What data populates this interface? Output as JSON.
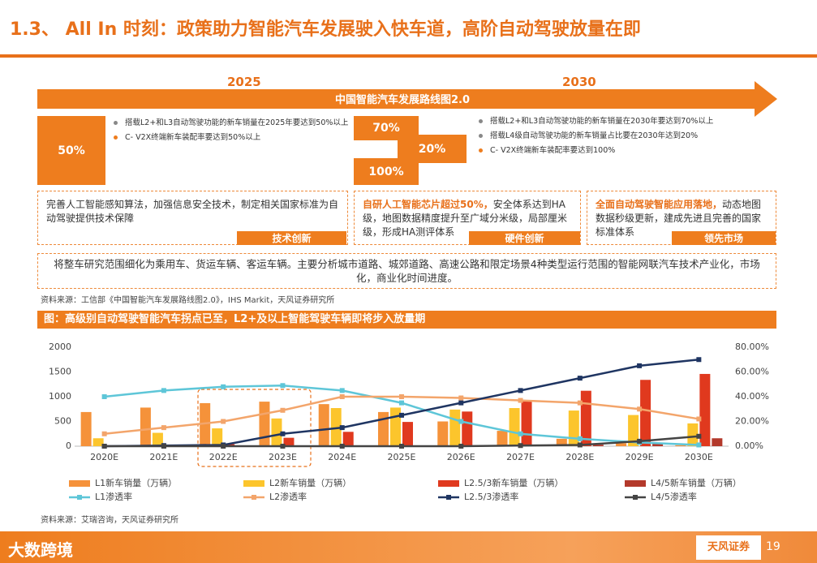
{
  "header": {
    "title": "1.3、 All In 时刻：政策助力智能汽车发展驶入快车道，高阶自动驾驶放量在即"
  },
  "roadmap": {
    "years": [
      "2025",
      "2030"
    ],
    "arrow_label": "中国智能汽车发展路线图2.0",
    "left": {
      "stat": "50%",
      "bullets": [
        "搭载L2+和L3自动驾驶功能的新车销量在2025年要达到50%以上",
        "C- V2X终端新车装配率要达到50%以上"
      ]
    },
    "right": {
      "stats": [
        "70%",
        "20%",
        "100%"
      ],
      "bullets": [
        "搭载L2+和L3自动驾驶功能的新车销量在2030年要达到70%以上",
        "搭载L4级自动驾驶功能的新车销量占比要在2030年达到20%",
        "C- V2X终端新车装配率要达到100%"
      ]
    }
  },
  "cards": [
    {
      "text": "完善人工智能感知算法，加强信息安全技术，制定相关国家标准为自动驾驶提供技术保障",
      "tag": "技术创新"
    },
    {
      "highlight": "自研人工智能芯片超过50%，",
      "text": "安全体系达到HA级，地图数据精度提升至广域分米级，局部厘米级，形成HA测评体系",
      "tag": "硬件创新"
    },
    {
      "highlight": "全面自动驾驶智能应用落地，",
      "text": "动态地图数据秒级更新，建成先进且完善的国家标准体系",
      "tag": "领先市场"
    }
  ],
  "summary": "将整车研究范围细化为乘用车、货运车辆、客运车辆。主要分析城市道路、城郊道路、高速公路和限定场景4种类型运行范围的智能网联汽车技术产业化，市场化，商业化时间进度。",
  "source_top": "资料来源：工信部《中国智能汽车发展路线图2.0》，IHS Markit，天风证券研究所",
  "chart_caption": "图：高级别自动驾驶智能汽车拐点已至，L2+及以上智能驾驶车辆即将步入放量期",
  "chart_data": {
    "type": "combo",
    "categories": [
      "2020E",
      "2021E",
      "2022E",
      "2023E",
      "2024E",
      "2025E",
      "2026E",
      "2027E",
      "2028E",
      "2029E",
      "2030E"
    ],
    "ylim": [
      0,
      2000
    ],
    "yticks": [
      0,
      500,
      1000,
      1500,
      2000
    ],
    "y2lim": [
      0,
      80
    ],
    "y2ticks": [
      {
        "value": 0,
        "label": "0.00%"
      },
      {
        "value": 20,
        "label": "20.00%"
      },
      {
        "value": 40,
        "label": "40.00%"
      },
      {
        "value": 60,
        "label": "60.00%"
      },
      {
        "value": 80,
        "label": "80.00%"
      }
    ],
    "series": [
      {
        "name": "L1新车销量（万辆）",
        "type": "bar",
        "color": "#f5923a",
        "values": [
          690,
          780,
          870,
          900,
          850,
          690,
          500,
          310,
          150,
          60,
          20
        ]
      },
      {
        "name": "L2新车销量（万辆）",
        "type": "bar",
        "color": "#fcc52c",
        "values": [
          160,
          270,
          360,
          560,
          770,
          780,
          740,
          770,
          720,
          630,
          460
        ]
      },
      {
        "name": "L2.5/3新车销量（万辆）",
        "type": "bar",
        "color": "#e0391e",
        "values": [
          5,
          15,
          40,
          170,
          290,
          490,
          700,
          910,
          1120,
          1340,
          1460
        ]
      },
      {
        "name": "L4/5新车销量（万辆）",
        "type": "bar",
        "color": "#b3392b",
        "values": [
          0,
          0,
          0,
          0,
          0,
          0,
          0,
          5,
          30,
          60,
          160
        ]
      },
      {
        "name": "L1渗透率",
        "type": "line",
        "axis": "y2",
        "color": "#5ec6d8",
        "values": [
          40,
          45,
          48,
          49,
          45,
          35,
          20,
          10,
          6,
          3,
          1
        ]
      },
      {
        "name": "L2渗透率",
        "type": "line",
        "axis": "y2",
        "color": "#f3a56b",
        "values": [
          10,
          15,
          20,
          29,
          40,
          40,
          39,
          37,
          35,
          30,
          22
        ]
      },
      {
        "name": "L2.5/3渗透率",
        "type": "line",
        "axis": "y2",
        "color": "#1f3562",
        "values": [
          0,
          0.5,
          1,
          10,
          15,
          25,
          35,
          45,
          55,
          65,
          70
        ]
      },
      {
        "name": "L4/5渗透率",
        "type": "line",
        "axis": "y2",
        "color": "#444444",
        "values": [
          0,
          0,
          0,
          0,
          0,
          0,
          0,
          0.5,
          1,
          4,
          8
        ]
      }
    ]
  },
  "chart_source": "资料来源：艾瑞咨询，天风证券研究所",
  "footer": {
    "brand": "大数跨境",
    "firm": "天风证券",
    "page": "19"
  }
}
